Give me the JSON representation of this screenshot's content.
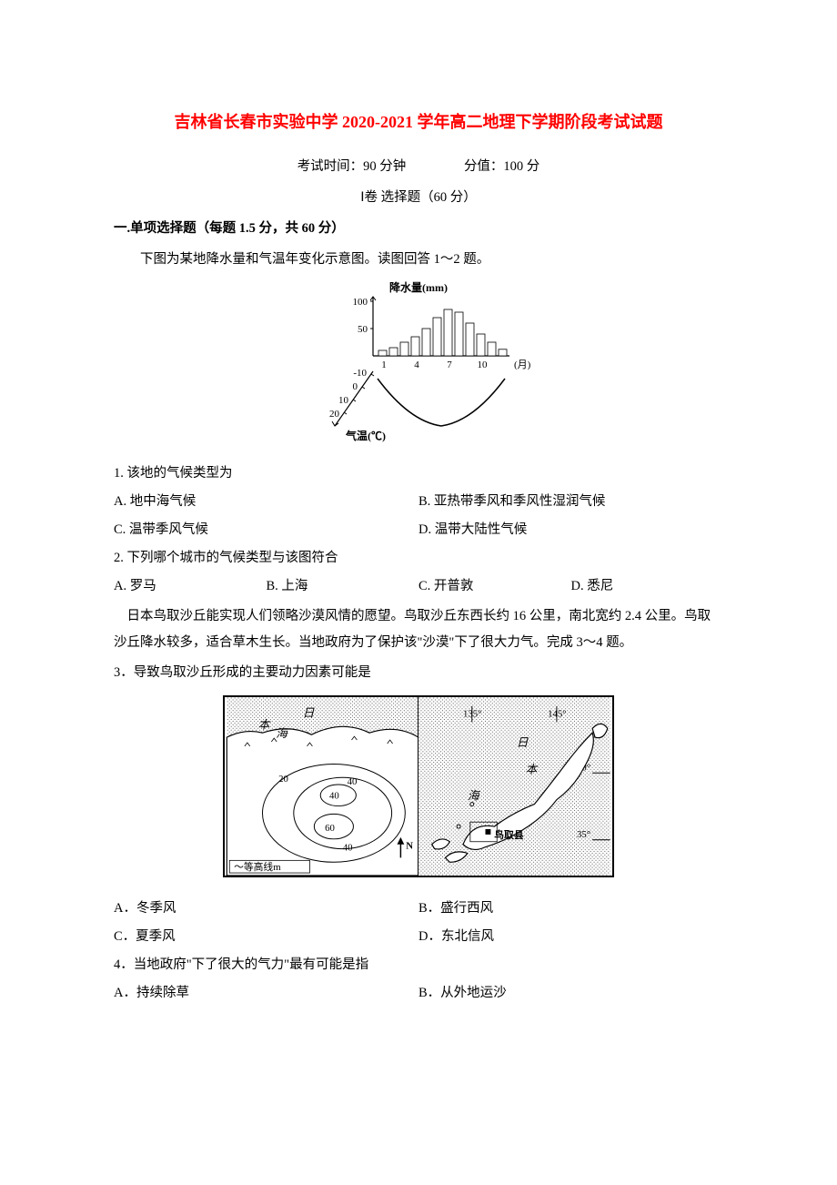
{
  "title": "吉林省长春市实验中学 2020-2021 学年高二地理下学期阶段考试试题",
  "exam_info": {
    "time": "考试时间：90 分钟",
    "score": "分值：100 分"
  },
  "section_info": "Ⅰ卷  选择题（60 分）",
  "section_header": "一.单项选择题（每题 1.5 分，共 60 分）",
  "intro_p1": "下图为某地降水量和气温年变化示意图。读图回答 1～2 题。",
  "chart": {
    "type": "combination",
    "precip_label": "降水量(mm)",
    "precip_axis": [
      "100",
      "50"
    ],
    "precip_values": [
      10,
      15,
      25,
      35,
      50,
      70,
      85,
      80,
      60,
      40,
      25,
      12
    ],
    "months_label": "(月)",
    "month_ticks": [
      "1",
      "4",
      "7",
      "10"
    ],
    "temp_label": "气温(℃)",
    "temp_axis": [
      "-10",
      "0",
      "10",
      "20"
    ],
    "temp_values": [
      -10,
      -7,
      0,
      10,
      16,
      20,
      24,
      24,
      18,
      10,
      2,
      -6
    ],
    "line_color": "#000000",
    "bar_color": "#ffffff",
    "bar_border": "#000000"
  },
  "q1": {
    "text": "1. 该地的气候类型为",
    "a": "A. 地中海气候",
    "b": "B. 亚热带季风和季风性湿润气候",
    "c": "C. 温带季风气候",
    "d": "D. 温带大陆性气候"
  },
  "q2": {
    "text": "2. 下列哪个城市的气候类型与该图符合",
    "a": "A. 罗马",
    "b": "B. 上海",
    "c": "C. 开普敦",
    "d": "D. 悉尼"
  },
  "passage2": "    日本鸟取沙丘能实现人们领略沙漠风情的愿望。鸟取沙丘东西长约 16 公里，南北宽约 2.4 公里。鸟取沙丘降水较多，适合草木生长。当地政府为了保护该\"沙漠\"下了很大力气。完成 3～4 题。",
  "q3": {
    "text": "3．导致鸟取沙丘形成的主要动力因素可能是",
    "a": "A．冬季风",
    "b": "B．盛行西风",
    "c": "C．夏季风",
    "d": "D．东北信风"
  },
  "q4": {
    "text": "4．当地政府\"下了很大的气力\"最有可能是指",
    "a": "A．持续除草",
    "b": "B．从外地运沙"
  },
  "map": {
    "labels": {
      "sea1": "海",
      "ri": "日",
      "ben": "本",
      "contour_legend": "～等高线m",
      "north": "N",
      "tottori": "鸟取县",
      "ri2": "日",
      "ben2": "本",
      "sea2": "海"
    },
    "contour_values": [
      "20",
      "40",
      "40",
      "60",
      "40"
    ],
    "longitude": [
      "135°",
      "145°"
    ],
    "latitude": [
      "40°",
      "35°"
    ],
    "bg_pattern_color": "#888888",
    "land_color": "#ffffff",
    "line_color": "#000000"
  }
}
